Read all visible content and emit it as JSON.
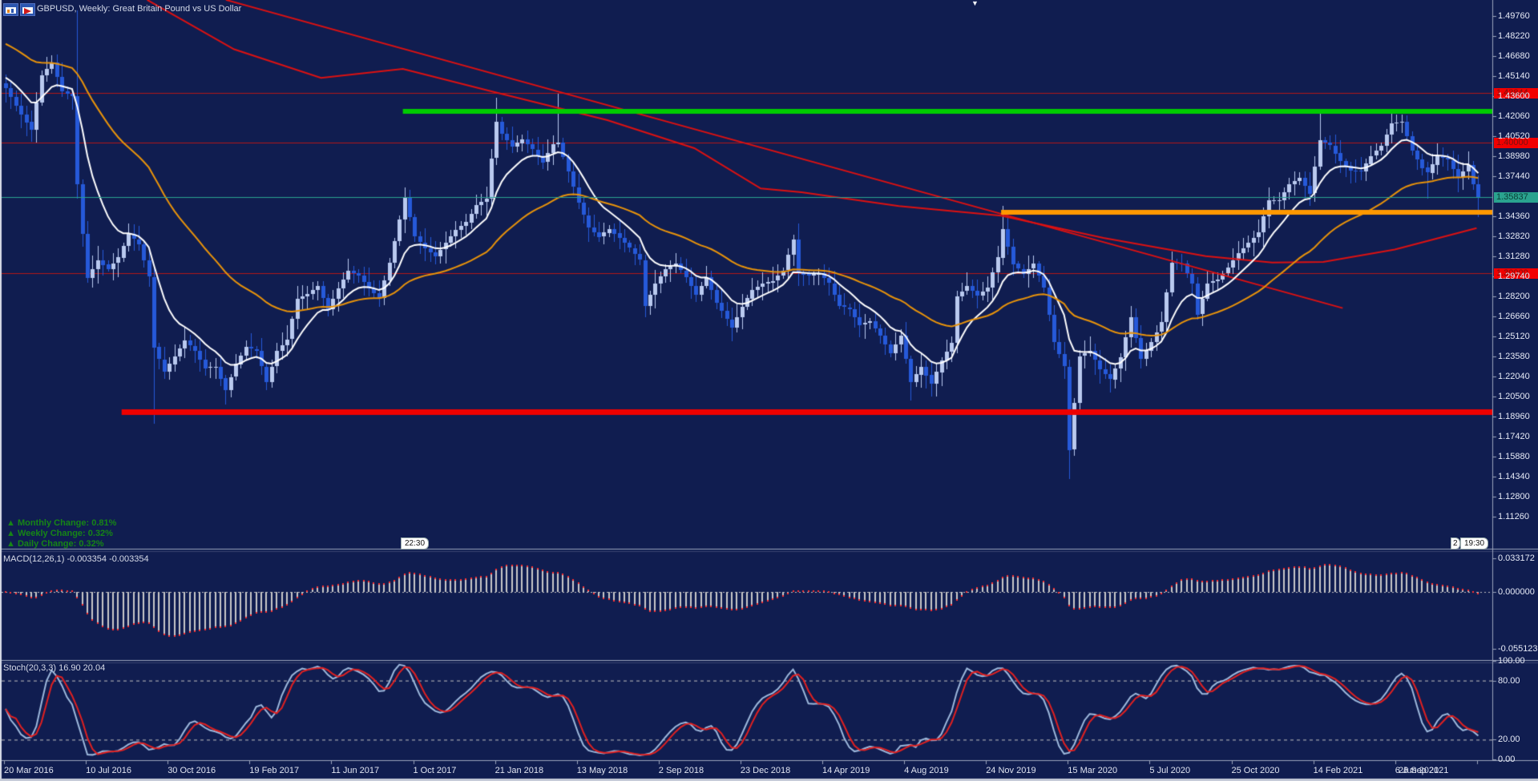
{
  "window": {
    "title": "GBPUSD, Weekly:  Great Britain Pound vs US Dollar",
    "icons": [
      "chart-window-icon",
      "indicator-window-icon"
    ],
    "object_marker": "▼"
  },
  "colors": {
    "background": "#101d50",
    "bull_candle": "#b9c9ef",
    "bear_candle": "#2659d9",
    "ma_white": "#ffffff",
    "ma_orange": "#e8930a",
    "ma_red": "#dd1111",
    "level_green": "#00cc00",
    "level_orange": "#ff9800",
    "level_red": "#ee0000",
    "hline_red": "#b51717",
    "current_price": "#2aa38f",
    "macd_hist": "#c8c8c8",
    "macd_signal": "#ff3333",
    "stoch_main": "#9db8dc",
    "stoch_signal": "#e02020",
    "change_text": "#168516"
  },
  "changes": {
    "monthly": "▲ Monthly Change: 0.81%",
    "weekly": "▲ Weekly Change: 0.32%",
    "daily": "▲ Daily Change: 0.32%"
  },
  "indicators": {
    "macd": {
      "label": "MACD(12,26,1) -0.003354 -0.003354",
      "values": [
        -0.003354,
        -0.003354
      ],
      "axis_labels": [
        "0.033172",
        "0.000000",
        "-0.055123"
      ],
      "range_max": 0.033172,
      "range_min": -0.055123
    },
    "stoch": {
      "label": "Stoch(20,3,3) 16.90 20.04",
      "values": [
        16.9,
        20.04
      ],
      "axis_labels": [
        "100.00",
        "80.00",
        "20.00",
        "0.00"
      ],
      "dashed_levels": [
        80,
        20
      ]
    }
  },
  "price_axis": {
    "labels": [
      "1.49760",
      "1.48220",
      "1.46680",
      "1.45140",
      "1.43600",
      "1.42060",
      "1.40520",
      "1.38980",
      "1.37440",
      "1.34360",
      "1.32820",
      "1.31280",
      "1.29740",
      "1.28200",
      "1.26660",
      "1.25120",
      "1.23580",
      "1.22040",
      "1.20500",
      "1.18960",
      "1.17420",
      "1.15880",
      "1.14340",
      "1.12800",
      "1.11260"
    ]
  },
  "price_tags": {
    "r1": "1.43844",
    "r2": "1.40000",
    "r3": "1.30000",
    "current": "1.35837"
  },
  "time_tags": [
    "22:30",
    "19:30"
  ],
  "date_axis": [
    "20 Mar 2016",
    "10 Jul 2016",
    "30 Oct 2016",
    "19 Feb 2017",
    "11 Jun 2017",
    "1 Oct 2017",
    "21 Jan 2018",
    "13 May 2018",
    "2 Sep 2018",
    "23 Dec 2018",
    "14 Apr 2019",
    "4 Aug 2019",
    "24 Nov 2019",
    "15 Mar 2020",
    "5 Jul 2020",
    "25 Oct 2020",
    "14 Feb 2021",
    "6 Jun 2021",
    "26 Sep 2021"
  ],
  "chart_data": {
    "type": "candlestick",
    "symbol": "GBPUSD",
    "timeframe": "Weekly",
    "title": "Great Britain Pound vs US Dollar",
    "candle_count": 289,
    "price_top": 1.4976,
    "price_step": 0.0154,
    "last_price": 1.35837,
    "close_anchors": [
      [
        0,
        1.442
      ],
      [
        3,
        1.422
      ],
      [
        5,
        1.41
      ],
      [
        7,
        1.452
      ],
      [
        9,
        1.462
      ],
      [
        11,
        1.44
      ],
      [
        13,
        1.436
      ],
      [
        14,
        1.368
      ],
      [
        15,
        1.33
      ],
      [
        16,
        1.296
      ],
      [
        18,
        1.31
      ],
      [
        20,
        1.303
      ],
      [
        22,
        1.312
      ],
      [
        24,
        1.33
      ],
      [
        26,
        1.322
      ],
      [
        28,
        1.297
      ],
      [
        29,
        1.243
      ],
      [
        31,
        1.224
      ],
      [
        33,
        1.236
      ],
      [
        35,
        1.248
      ],
      [
        37,
        1.24
      ],
      [
        39,
        1.227
      ],
      [
        41,
        1.228
      ],
      [
        43,
        1.21
      ],
      [
        45,
        1.23
      ],
      [
        47,
        1.243
      ],
      [
        49,
        1.24
      ],
      [
        51,
        1.216
      ],
      [
        53,
        1.24
      ],
      [
        55,
        1.249
      ],
      [
        57,
        1.28
      ],
      [
        59,
        1.284
      ],
      [
        61,
        1.29
      ],
      [
        63,
        1.272
      ],
      [
        65,
        1.288
      ],
      [
        67,
        1.302
      ],
      [
        69,
        1.298
      ],
      [
        71,
        1.288
      ],
      [
        73,
        1.281
      ],
      [
        75,
        1.308
      ],
      [
        78,
        1.358
      ],
      [
        80,
        1.328
      ],
      [
        82,
        1.319
      ],
      [
        84,
        1.313
      ],
      [
        86,
        1.323
      ],
      [
        88,
        1.333
      ],
      [
        90,
        1.339
      ],
      [
        92,
        1.352
      ],
      [
        94,
        1.357
      ],
      [
        95,
        1.388
      ],
      [
        96,
        1.416
      ],
      [
        97,
        1.407
      ],
      [
        99,
        1.397
      ],
      [
        101,
        1.403
      ],
      [
        103,
        1.395
      ],
      [
        105,
        1.385
      ],
      [
        107,
        1.399
      ],
      [
        108,
        1.4
      ],
      [
        110,
        1.378
      ],
      [
        112,
        1.354
      ],
      [
        114,
        1.335
      ],
      [
        116,
        1.328
      ],
      [
        118,
        1.334
      ],
      [
        120,
        1.327
      ],
      [
        122,
        1.319
      ],
      [
        124,
        1.31
      ],
      [
        125,
        1.275
      ],
      [
        127,
        1.292
      ],
      [
        129,
        1.303
      ],
      [
        131,
        1.307
      ],
      [
        133,
        1.297
      ],
      [
        135,
        1.283
      ],
      [
        137,
        1.297
      ],
      [
        139,
        1.277
      ],
      [
        142,
        1.258
      ],
      [
        144,
        1.274
      ],
      [
        146,
        1.287
      ],
      [
        148,
        1.292
      ],
      [
        150,
        1.294
      ],
      [
        152,
        1.302
      ],
      [
        154,
        1.326
      ],
      [
        155,
        1.3
      ],
      [
        157,
        1.298
      ],
      [
        159,
        1.3
      ],
      [
        161,
        1.292
      ],
      [
        163,
        1.275
      ],
      [
        165,
        1.272
      ],
      [
        167,
        1.26
      ],
      [
        169,
        1.263
      ],
      [
        171,
        1.252
      ],
      [
        173,
        1.238
      ],
      [
        175,
        1.252
      ],
      [
        177,
        1.216
      ],
      [
        179,
        1.228
      ],
      [
        181,
        1.215
      ],
      [
        183,
        1.233
      ],
      [
        185,
        1.246
      ],
      [
        186,
        1.282
      ],
      [
        188,
        1.29
      ],
      [
        190,
        1.283
      ],
      [
        192,
        1.289
      ],
      [
        194,
        1.312
      ],
      [
        195,
        1.334
      ],
      [
        197,
        1.307
      ],
      [
        199,
        1.299
      ],
      [
        201,
        1.307
      ],
      [
        203,
        1.289
      ],
      [
        205,
        1.247
      ],
      [
        207,
        1.228
      ],
      [
        208,
        1.164
      ],
      [
        210,
        1.236
      ],
      [
        212,
        1.24
      ],
      [
        214,
        1.226
      ],
      [
        216,
        1.218
      ],
      [
        218,
        1.235
      ],
      [
        220,
        1.266
      ],
      [
        222,
        1.234
      ],
      [
        224,
        1.247
      ],
      [
        226,
        1.262
      ],
      [
        228,
        1.308
      ],
      [
        230,
        1.307
      ],
      [
        232,
        1.292
      ],
      [
        233,
        1.268
      ],
      [
        235,
        1.292
      ],
      [
        237,
        1.295
      ],
      [
        239,
        1.304
      ],
      [
        241,
        1.315
      ],
      [
        243,
        1.323
      ],
      [
        245,
        1.331
      ],
      [
        247,
        1.356
      ],
      [
        249,
        1.356
      ],
      [
        251,
        1.368
      ],
      [
        253,
        1.373
      ],
      [
        255,
        1.361
      ],
      [
        257,
        1.402
      ],
      [
        259,
        1.398
      ],
      [
        261,
        1.386
      ],
      [
        263,
        1.379
      ],
      [
        265,
        1.378
      ],
      [
        267,
        1.39
      ],
      [
        269,
        1.398
      ],
      [
        271,
        1.415
      ],
      [
        273,
        1.416
      ],
      [
        275,
        1.394
      ],
      [
        277,
        1.381
      ],
      [
        278,
        1.377
      ],
      [
        280,
        1.39
      ],
      [
        282,
        1.387
      ],
      [
        284,
        1.373
      ],
      [
        286,
        1.383
      ],
      [
        287,
        1.368
      ],
      [
        288,
        1.358
      ]
    ],
    "wick_spikes": [
      [
        14,
        "h",
        1.5018
      ],
      [
        14,
        "l",
        1.365
      ],
      [
        29,
        "l",
        1.1841
      ],
      [
        43,
        "l",
        1.1986
      ],
      [
        51,
        "l",
        1.2109
      ],
      [
        78,
        "h",
        1.3657
      ],
      [
        96,
        "h",
        1.4346
      ],
      [
        108,
        "h",
        1.4377
      ],
      [
        125,
        "l",
        1.2662
      ],
      [
        142,
        "l",
        1.2477
      ],
      [
        155,
        "h",
        1.3383
      ],
      [
        177,
        "l",
        1.2015
      ],
      [
        195,
        "h",
        1.3514
      ],
      [
        208,
        "l",
        1.1412
      ],
      [
        216,
        "l",
        1.2075
      ],
      [
        233,
        "l",
        1.2676
      ],
      [
        247,
        "h",
        1.3624
      ],
      [
        257,
        "h",
        1.4237
      ],
      [
        271,
        "h",
        1.4248
      ],
      [
        272,
        "h",
        1.422
      ],
      [
        278,
        "l",
        1.3572
      ],
      [
        288,
        "l",
        1.3434
      ]
    ],
    "levels": [
      {
        "name": "resistance-green",
        "price": 1.424,
        "start_idx": 78,
        "thickness": 6,
        "color": "#00cc00"
      },
      {
        "name": "support-orange",
        "price": 1.3466,
        "start_idx": 195,
        "thickness": 6,
        "color": "#ff9800"
      },
      {
        "name": "support-red",
        "price": 1.193,
        "start_idx": 23,
        "thickness": 7,
        "color": "#ee0000"
      },
      {
        "name": "hline-1",
        "price": 1.43844,
        "start_idx": 0,
        "thickness": 1,
        "color": "#b51717"
      },
      {
        "name": "hline-2",
        "price": 1.4,
        "start_idx": 0,
        "thickness": 1,
        "color": "#b51717"
      },
      {
        "name": "hline-3",
        "price": 1.3,
        "start_idx": 0,
        "thickness": 1,
        "color": "#b51717"
      },
      {
        "name": "current-price-line",
        "price": 1.35837,
        "start_idx": 0,
        "thickness": 1,
        "color": "#2aa38f"
      }
    ],
    "trendline": {
      "from_idx": 43.4,
      "from_price": 1.51,
      "to_idx": 261.8,
      "to_price": 1.273,
      "color": "#dd1111"
    },
    "ma_red_points": [
      [
        28,
        1.51
      ],
      [
        45,
        1.472
      ],
      [
        62,
        1.45
      ],
      [
        78,
        1.457
      ],
      [
        95,
        1.44
      ],
      [
        118,
        1.4175
      ],
      [
        135,
        1.396
      ],
      [
        148,
        1.365
      ],
      [
        156,
        1.3621
      ],
      [
        175,
        1.3515
      ],
      [
        195,
        1.344
      ],
      [
        215,
        1.327
      ],
      [
        235,
        1.313
      ],
      [
        248,
        1.308
      ],
      [
        258,
        1.3085
      ],
      [
        272,
        1.318
      ],
      [
        288,
        1.3345
      ]
    ],
    "ma_white": {
      "type": "ema",
      "alpha": 0.18,
      "seed": 1.452
    },
    "ma_orange": {
      "type": "ema",
      "alpha": 0.05,
      "seed": 1.478
    }
  }
}
